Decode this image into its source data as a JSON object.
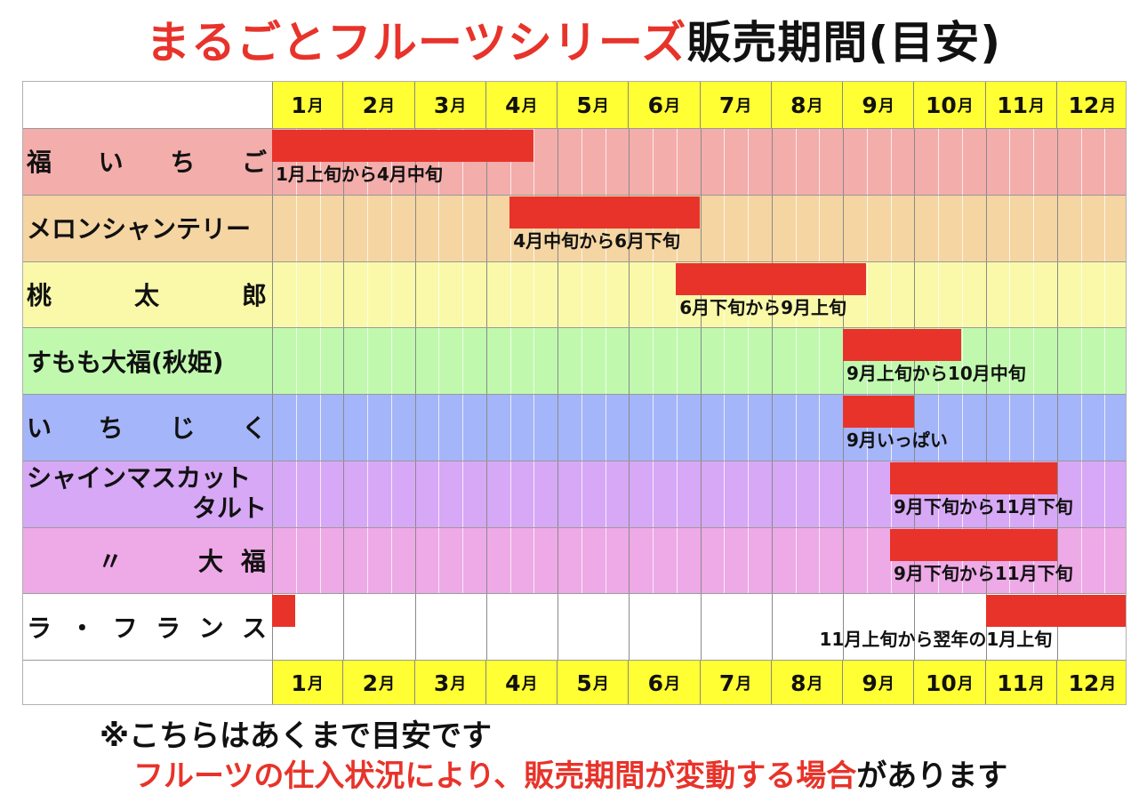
{
  "title": {
    "red": "まるごとフルーツシリーズ",
    "black": "販売期間(目安)"
  },
  "colors": {
    "bar": "#e8332a",
    "month_header": "#ffff33",
    "title_red": "#e8332a"
  },
  "months": [
    "1",
    "2",
    "3",
    "4",
    "5",
    "6",
    "7",
    "8",
    "9",
    "10",
    "11",
    "12"
  ],
  "month_unit": "月",
  "rows": [
    {
      "name_parts": [
        "福",
        "い",
        "ち",
        "ご"
      ],
      "color": "#f3adab",
      "periods": [
        [
          0,
          3.66
        ]
      ],
      "caption": "1月上旬から4月中旬"
    },
    {
      "name": "メロンシャンテリー",
      "color": "#f5d5a2",
      "periods": [
        [
          3.33,
          6.0
        ]
      ],
      "caption": "4月中旬から6月下旬"
    },
    {
      "name_parts": [
        "桃",
        "太",
        "郎"
      ],
      "color": "#f9f9a9",
      "periods": [
        [
          5.66,
          8.33
        ]
      ],
      "caption": "6月下旬から9月上旬"
    },
    {
      "name": "すもも大福(秋姫)",
      "color": "#c0f9ae",
      "periods": [
        [
          8.0,
          9.66
        ]
      ],
      "caption": "9月上旬から10月中旬"
    },
    {
      "name_parts": [
        "い",
        "ち",
        "じ",
        "く"
      ],
      "color": "#a5b5f9",
      "periods": [
        [
          8.0,
          9.0
        ]
      ],
      "caption": "9月いっぱい"
    },
    {
      "name_lines": [
        "シャインマスカット",
        "タルト"
      ],
      "color": "#d7a8f6",
      "periods": [
        [
          8.66,
          11.0
        ]
      ],
      "caption": "9月下旬から11月下旬"
    },
    {
      "name_parts": [
        "〃",
        "大",
        "福"
      ],
      "color": "#eea9e7",
      "periods": [
        [
          8.66,
          11.0
        ]
      ],
      "caption": "9月下旬から11月下旬"
    },
    {
      "name_parts": [
        "ラ",
        "・",
        "フ",
        "ラ",
        "ン",
        "ス"
      ],
      "color": "#ffffff",
      "periods": [
        [
          0,
          0.33
        ],
        [
          10.0,
          12.0
        ]
      ],
      "caption": "11月上旬から翌年の1月上旬"
    }
  ],
  "notes": {
    "line1": "※こちらはあくまで目安です",
    "line2_red": "フルーツの仕入状況により、販売期間が変動する場合",
    "line2_black": "があります"
  }
}
